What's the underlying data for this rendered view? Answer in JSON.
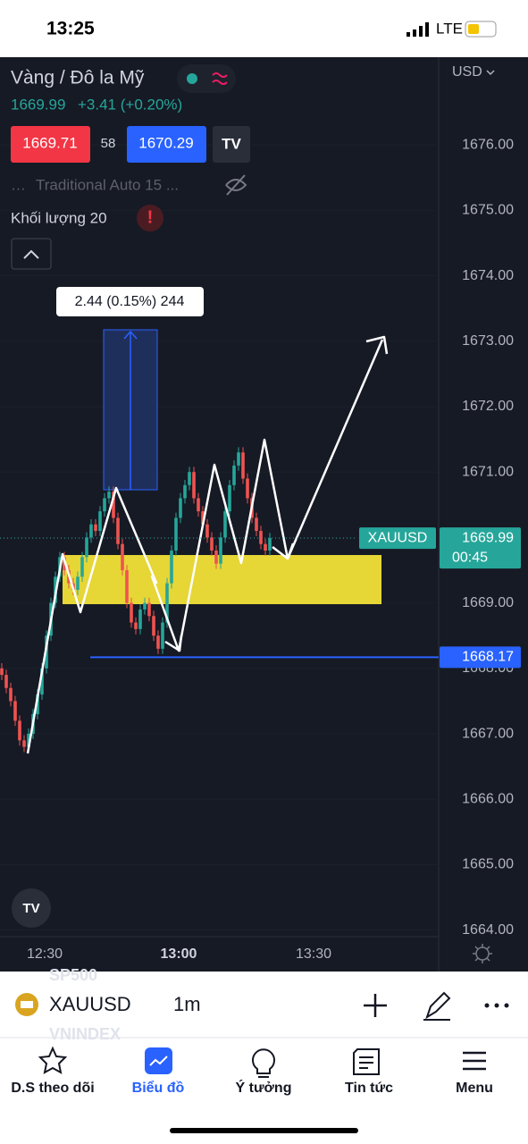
{
  "status": {
    "time": "13:25",
    "network": "LTE"
  },
  "header": {
    "title": "Vàng / Đô la Mỹ",
    "price": "1669.99",
    "change": "+3.41 (+0.20%)",
    "sell": "1669.71",
    "spread": "58",
    "buy": "1670.29",
    "indicator": "Traditional Auto 15 ...",
    "volume": "Khối lượng 20"
  },
  "measure_label": "2.44 (0.15%) 244",
  "chart_data": {
    "type": "candlestick",
    "currency": "USD",
    "ylim": [
      1663.9,
      1677.34
    ],
    "yticks": [
      {
        "value": 1664,
        "label": "1664.00"
      },
      {
        "value": 1665,
        "label": "1665.00"
      },
      {
        "value": 1666,
        "label": "1666.00"
      },
      {
        "value": 1667,
        "label": "1667.00"
      },
      {
        "value": 1668,
        "label": "1668.00"
      },
      {
        "value": 1669,
        "label": "1669.00"
      },
      {
        "value": 1670,
        "label": "1670.00"
      },
      {
        "value": 1671,
        "label": "1671.00"
      },
      {
        "value": 1672,
        "label": "1672.00"
      },
      {
        "value": 1673,
        "label": "1673.00"
      },
      {
        "value": 1674,
        "label": "1674.00"
      },
      {
        "value": 1675,
        "label": "1675.00"
      },
      {
        "value": 1676,
        "label": "1676.00"
      }
    ],
    "xticks": [
      "12:30",
      "13:00",
      "13:30"
    ],
    "up_color": "#26a69a",
    "down_color": "#ef5350",
    "candles": [
      [
        1668.0,
        1668.08,
        1667.82,
        1667.9
      ],
      [
        1667.9,
        1667.98,
        1667.62,
        1667.7
      ],
      [
        1667.7,
        1667.78,
        1667.42,
        1667.5
      ],
      [
        1667.5,
        1667.58,
        1667.12,
        1667.2
      ],
      [
        1667.2,
        1667.28,
        1666.82,
        1666.9
      ],
      [
        1666.9,
        1666.98,
        1666.72,
        1666.8
      ],
      [
        1666.8,
        1667.08,
        1666.72,
        1667.0
      ],
      [
        1667.0,
        1667.38,
        1666.92,
        1667.3
      ],
      [
        1667.3,
        1667.68,
        1667.22,
        1667.6
      ],
      [
        1667.6,
        1668.08,
        1667.52,
        1668.0
      ],
      [
        1668.0,
        1668.58,
        1667.92,
        1668.5
      ],
      [
        1668.5,
        1669.08,
        1668.42,
        1669.0
      ],
      [
        1669.0,
        1669.48,
        1668.92,
        1669.4
      ],
      [
        1669.4,
        1669.78,
        1669.32,
        1669.7
      ],
      [
        1669.7,
        1669.78,
        1669.42,
        1669.5
      ],
      [
        1669.5,
        1669.58,
        1669.22,
        1669.3
      ],
      [
        1669.3,
        1669.38,
        1669.12,
        1669.2
      ],
      [
        1669.2,
        1669.48,
        1669.12,
        1669.4
      ],
      [
        1669.4,
        1669.78,
        1669.32,
        1669.7
      ],
      [
        1669.7,
        1670.08,
        1669.62,
        1670.0
      ],
      [
        1670.0,
        1670.28,
        1669.92,
        1670.2
      ],
      [
        1670.2,
        1670.28,
        1670.02,
        1670.1
      ],
      [
        1670.1,
        1670.48,
        1670.02,
        1670.4
      ],
      [
        1670.4,
        1670.68,
        1670.32,
        1670.6
      ],
      [
        1670.6,
        1670.78,
        1670.52,
        1670.7
      ],
      [
        1670.7,
        1670.78,
        1670.22,
        1670.3
      ],
      [
        1670.3,
        1670.38,
        1669.82,
        1669.9
      ],
      [
        1669.9,
        1669.98,
        1669.42,
        1669.5
      ],
      [
        1669.5,
        1669.58,
        1668.92,
        1669.0
      ],
      [
        1669.0,
        1669.08,
        1668.62,
        1668.7
      ],
      [
        1668.7,
        1668.78,
        1668.52,
        1668.6
      ],
      [
        1668.6,
        1668.98,
        1668.52,
        1668.9
      ],
      [
        1668.9,
        1669.08,
        1668.82,
        1669.0
      ],
      [
        1669.0,
        1669.08,
        1668.72,
        1668.8
      ],
      [
        1668.8,
        1668.88,
        1668.42,
        1668.5
      ],
      [
        1668.5,
        1668.58,
        1668.22,
        1668.3
      ],
      [
        1668.3,
        1668.78,
        1668.22,
        1668.7
      ],
      [
        1668.7,
        1669.38,
        1668.62,
        1669.3
      ],
      [
        1669.3,
        1669.88,
        1669.22,
        1669.8
      ],
      [
        1669.8,
        1670.38,
        1669.72,
        1670.3
      ],
      [
        1670.3,
        1670.68,
        1670.22,
        1670.6
      ],
      [
        1670.6,
        1670.88,
        1670.52,
        1670.8
      ],
      [
        1670.8,
        1671.08,
        1670.72,
        1671.0
      ],
      [
        1671.0,
        1671.08,
        1670.52,
        1670.6
      ],
      [
        1670.6,
        1670.68,
        1670.32,
        1670.4
      ],
      [
        1670.4,
        1670.48,
        1670.12,
        1670.2
      ],
      [
        1670.2,
        1670.28,
        1669.92,
        1670.0
      ],
      [
        1670.0,
        1670.08,
        1669.72,
        1669.8
      ],
      [
        1669.8,
        1669.88,
        1669.52,
        1669.6
      ],
      [
        1669.6,
        1670.08,
        1669.52,
        1670.0
      ],
      [
        1670.0,
        1670.48,
        1669.92,
        1670.4
      ],
      [
        1670.4,
        1670.88,
        1670.32,
        1670.8
      ],
      [
        1670.8,
        1671.18,
        1670.72,
        1671.1
      ],
      [
        1671.1,
        1671.38,
        1671.02,
        1671.3
      ],
      [
        1671.3,
        1671.38,
        1670.82,
        1670.9
      ],
      [
        1670.9,
        1670.98,
        1670.52,
        1670.6
      ],
      [
        1670.6,
        1670.68,
        1670.22,
        1670.3
      ],
      [
        1670.3,
        1670.38,
        1670.02,
        1670.1
      ],
      [
        1670.1,
        1670.18,
        1669.82,
        1669.9
      ],
      [
        1669.9,
        1669.98,
        1669.72,
        1669.8
      ],
      [
        1669.8,
        1670.07,
        1669.72,
        1669.99
      ]
    ],
    "hline": {
      "value": 1668.17,
      "label": "1668.17",
      "color": "#2962ff"
    },
    "last": {
      "value": 1669.99,
      "label": "1669.99",
      "symbol": "XAUUSD",
      "countdown": "00:45",
      "color": "#26a69a"
    }
  },
  "bottom": {
    "symbol": "XAUUSD",
    "interval": "1m",
    "ghost1": "SP500",
    "ghost2": "VNINDEX"
  },
  "tabs": [
    "D.S theo dõi",
    "Biểu đồ",
    "Ý tưởng",
    "Tin tức",
    "Menu"
  ]
}
